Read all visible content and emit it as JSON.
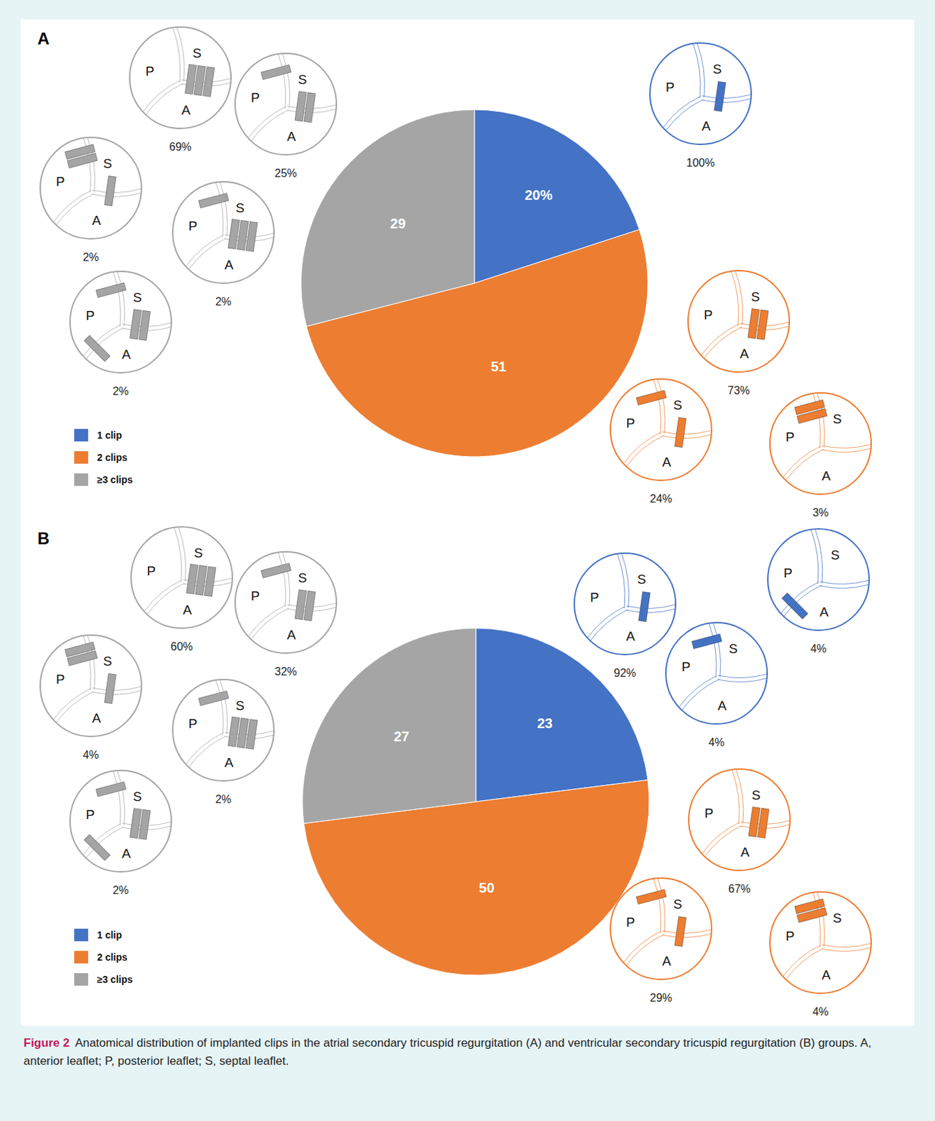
{
  "chart_data": [
    {
      "type": "pie",
      "title": "A",
      "categories": [
        "1 clip",
        "2 clips",
        "≥3 clips"
      ],
      "values": [
        20,
        51,
        29
      ],
      "value_labels": [
        "20%",
        "51",
        "29"
      ],
      "colors": [
        "#4472c4",
        "#ed7d31",
        "#a5a5a5"
      ],
      "data_labels": true,
      "legend": "bottom left"
    },
    {
      "type": "pie",
      "title": "B",
      "categories": [
        "1 clip",
        "2 clips",
        "≥3 clips"
      ],
      "values": [
        23,
        50,
        27
      ],
      "value_labels": [
        "23",
        "50",
        "27"
      ],
      "colors": [
        "#4472c4",
        "#ed7d31",
        "#a5a5a5"
      ],
      "data_labels": true,
      "legend": "bottom left"
    }
  ],
  "leaflets": [
    "P",
    "S",
    "A"
  ],
  "diagrams": [
    [
      {
        "category": "≥3 clips",
        "clips": [
          {
            "between": [
              "A",
              "S"
            ],
            "count": 3
          }
        ],
        "share": "69%"
      },
      {
        "category": "≥3 clips",
        "clips": [
          {
            "between": [
              "P",
              "S"
            ],
            "count": 1
          },
          {
            "between": [
              "A",
              "S"
            ],
            "count": 2
          }
        ],
        "share": "25%"
      },
      {
        "category": "≥3 clips",
        "clips": [
          {
            "between": [
              "P",
              "S"
            ],
            "count": 2
          },
          {
            "between": [
              "A",
              "S"
            ],
            "count": 1
          }
        ],
        "share": "2%"
      },
      {
        "category": "≥3 clips",
        "clips": [
          {
            "between": [
              "P",
              "S"
            ],
            "count": 1
          },
          {
            "between": [
              "A",
              "S"
            ],
            "count": 3
          }
        ],
        "share": "2%"
      },
      {
        "category": "≥3 clips",
        "clips": [
          {
            "between": [
              "P",
              "S"
            ],
            "count": 1
          },
          {
            "between": [
              "A",
              "S"
            ],
            "count": 2
          },
          {
            "between": [
              "A",
              "P"
            ],
            "count": 1
          }
        ],
        "share": "2%"
      },
      {
        "category": "1 clip",
        "clips": [
          {
            "between": [
              "A",
              "S"
            ],
            "count": 1
          }
        ],
        "share": "100%"
      },
      {
        "category": "2 clips",
        "clips": [
          {
            "between": [
              "A",
              "S"
            ],
            "count": 2
          }
        ],
        "share": "73%"
      },
      {
        "category": "2 clips",
        "clips": [
          {
            "between": [
              "P",
              "S"
            ],
            "count": 1
          },
          {
            "between": [
              "A",
              "S"
            ],
            "count": 1
          }
        ],
        "share": "24%"
      },
      {
        "category": "2 clips",
        "clips": [
          {
            "between": [
              "P",
              "S"
            ],
            "count": 2
          }
        ],
        "share": "3%"
      }
    ],
    [
      {
        "category": "≥3 clips",
        "clips": [
          {
            "between": [
              "A",
              "S"
            ],
            "count": 3
          }
        ],
        "share": "60%"
      },
      {
        "category": "≥3 clips",
        "clips": [
          {
            "between": [
              "P",
              "S"
            ],
            "count": 1
          },
          {
            "between": [
              "A",
              "S"
            ],
            "count": 2
          }
        ],
        "share": "32%"
      },
      {
        "category": "≥3 clips",
        "clips": [
          {
            "between": [
              "P",
              "S"
            ],
            "count": 2
          },
          {
            "between": [
              "A",
              "S"
            ],
            "count": 1
          }
        ],
        "share": "4%"
      },
      {
        "category": "≥3 clips",
        "clips": [
          {
            "between": [
              "P",
              "S"
            ],
            "count": 1
          },
          {
            "between": [
              "A",
              "S"
            ],
            "count": 3
          }
        ],
        "share": "2%"
      },
      {
        "category": "≥3 clips",
        "clips": [
          {
            "between": [
              "P",
              "S"
            ],
            "count": 1
          },
          {
            "between": [
              "A",
              "S"
            ],
            "count": 2
          },
          {
            "between": [
              "A",
              "P"
            ],
            "count": 1
          }
        ],
        "share": "2%"
      },
      {
        "category": "1 clip",
        "clips": [
          {
            "between": [
              "A",
              "S"
            ],
            "count": 1
          }
        ],
        "share": "92%"
      },
      {
        "category": "1 clip",
        "clips": [
          {
            "between": [
              "A",
              "P"
            ],
            "count": 1
          }
        ],
        "share": "4%"
      },
      {
        "category": "1 clip",
        "clips": [
          {
            "between": [
              "P",
              "S"
            ],
            "count": 1
          }
        ],
        "share": "4%"
      },
      {
        "category": "2 clips",
        "clips": [
          {
            "between": [
              "A",
              "S"
            ],
            "count": 2
          }
        ],
        "share": "67%"
      },
      {
        "category": "2 clips",
        "clips": [
          {
            "between": [
              "P",
              "S"
            ],
            "count": 1
          },
          {
            "between": [
              "A",
              "S"
            ],
            "count": 1
          }
        ],
        "share": "29%"
      },
      {
        "category": "2 clips",
        "clips": [
          {
            "between": [
              "P",
              "S"
            ],
            "count": 2
          }
        ],
        "share": "4%"
      }
    ]
  ],
  "caption": {
    "label": "Figure 2",
    "text": "Anatomical distribution of implanted clips in the atrial secondary tricuspid regurgitation (A) and ventricular secondary tricuspid regurgitation (B) groups. A, anterior leaflet; P, posterior leaflet; S, septal leaflet."
  }
}
